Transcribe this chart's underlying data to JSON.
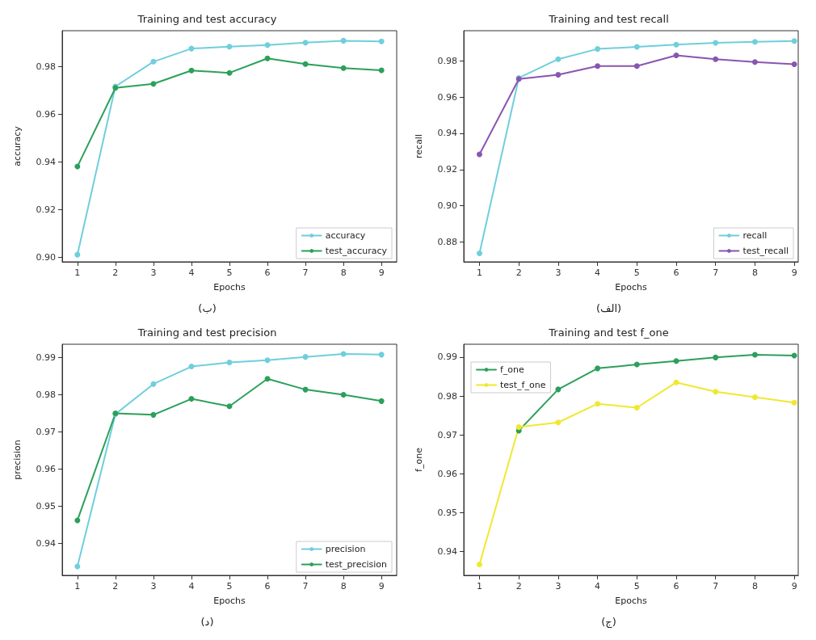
{
  "chart_data": [
    {
      "type": "line",
      "title": "Training and test accuracy",
      "xlabel": "Epochs",
      "ylabel": "accuracy",
      "x": [
        1,
        2,
        3,
        4,
        5,
        6,
        7,
        8,
        9
      ],
      "xlim": [
        0.6,
        9.4
      ],
      "xticks": [
        1,
        2,
        3,
        4,
        5,
        6,
        7,
        8,
        9
      ],
      "ylim": [
        0.898,
        0.995
      ],
      "yticks": [
        {
          "value": 0.9,
          "label": "0.90"
        },
        0.92,
        0.94,
        0.96,
        0.98
      ],
      "grid": false,
      "legend": "bottom right",
      "marker": "circle",
      "line_style": "solid",
      "annotations": [
        "(ب)"
      ],
      "series": [
        {
          "name": "accuracy",
          "color": "#6fcfdc",
          "values": [
            0.901,
            0.9716,
            0.982,
            0.9875,
            0.9883,
            0.989,
            0.99,
            0.9908,
            0.9905
          ]
        },
        {
          "name": "test_accuracy",
          "color": "#2ca05a",
          "values": [
            0.938,
            0.971,
            0.9727,
            0.9783,
            0.9773,
            0.9834,
            0.981,
            0.9793,
            0.9784
          ]
        }
      ]
    },
    {
      "type": "line",
      "title": "Training and test recall",
      "xlabel": "Epochs",
      "ylabel": "recall",
      "x": [
        1,
        2,
        3,
        4,
        5,
        6,
        7,
        8,
        9
      ],
      "xlim": [
        0.6,
        9.1
      ],
      "xticks": [
        1,
        2,
        3,
        4,
        5,
        6,
        7,
        8,
        9
      ],
      "ylim": [
        0.869,
        0.9967
      ],
      "yticks": [
        0.88,
        {
          "value": 0.9,
          "label": "0.90"
        },
        0.92,
        0.94,
        0.96,
        0.98
      ],
      "grid": false,
      "legend": "bottom right",
      "marker": "circle",
      "line_style": "solid",
      "annotations": [
        "(الف)"
      ],
      "series": [
        {
          "name": "recall",
          "color": "#6fcfdc",
          "values": [
            0.8737,
            0.9706,
            0.981,
            0.9866,
            0.9878,
            0.989,
            0.99,
            0.9906,
            0.991
          ]
        },
        {
          "name": "test_recall",
          "color": "#8a55b0",
          "values": [
            0.9284,
            0.97,
            0.9724,
            0.9772,
            0.9772,
            0.9831,
            0.981,
            0.9794,
            0.9782
          ]
        }
      ]
    },
    {
      "type": "line",
      "title": "Training and test precision",
      "xlabel": "Epochs",
      "ylabel": "precision",
      "x": [
        1,
        2,
        3,
        4,
        5,
        6,
        7,
        8,
        9
      ],
      "xlim": [
        0.6,
        9.4
      ],
      "xticks": [
        1,
        2,
        3,
        4,
        5,
        6,
        7,
        8,
        9
      ],
      "ylim": [
        0.9314,
        0.9936
      ],
      "yticks": [
        0.94,
        0.95,
        0.96,
        0.97,
        0.98,
        0.99
      ],
      "grid": false,
      "legend": "bottom right",
      "marker": "circle",
      "line_style": "solid",
      "annotations": [
        "(د)"
      ],
      "series": [
        {
          "name": "precision",
          "color": "#6fcfdc",
          "values": [
            0.9338,
            0.9748,
            0.9829,
            0.9876,
            0.9887,
            0.9893,
            0.9902,
            0.991,
            0.9908
          ]
        },
        {
          "name": "test_precision",
          "color": "#2ca05a",
          "values": [
            0.9462,
            0.975,
            0.9746,
            0.9789,
            0.9769,
            0.9843,
            0.9814,
            0.98,
            0.9783
          ]
        }
      ]
    },
    {
      "type": "line",
      "title": "Training and test f_one",
      "xlabel": "Epochs",
      "ylabel": "f_one",
      "x": [
        1,
        2,
        3,
        4,
        5,
        6,
        7,
        8,
        9
      ],
      "xlim": [
        0.6,
        9.1
      ],
      "xticks": [
        1,
        2,
        3,
        4,
        5,
        6,
        7,
        8,
        9
      ],
      "ylim": [
        0.9339,
        0.9933
      ],
      "yticks": [
        0.94,
        0.95,
        0.96,
        0.97,
        0.98,
        0.99
      ],
      "grid": false,
      "legend": "top left",
      "marker": "circle",
      "line_style": "solid",
      "annotations": [
        "(ج)"
      ],
      "series": [
        {
          "name": "f_one",
          "color": "#2ca05a",
          "values": [
            null,
            0.9711,
            0.9817,
            0.9871,
            0.9881,
            0.989,
            0.9899,
            0.9906,
            0.9904
          ]
        },
        {
          "name": "test_f_one",
          "color": "#f0e830",
          "values": [
            0.9367,
            0.972,
            0.9732,
            0.978,
            0.977,
            0.9835,
            0.9811,
            0.9797,
            0.9783
          ]
        }
      ]
    }
  ]
}
